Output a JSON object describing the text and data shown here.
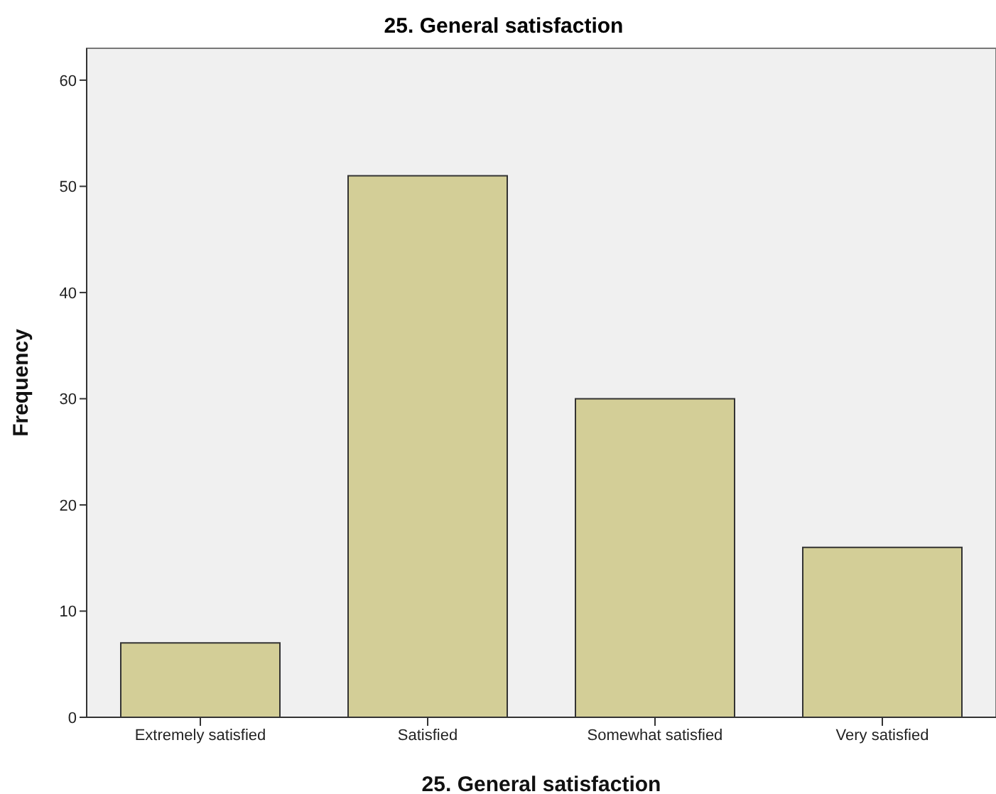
{
  "chart_data": {
    "type": "bar",
    "title": "25. General satisfaction",
    "xlabel": "25. General satisfaction",
    "ylabel": "Frequency",
    "categories": [
      "Extremely satisfied",
      "Satisfied",
      "Somewhat satisfied",
      "Very satisfied"
    ],
    "values": [
      7,
      51,
      30,
      16
    ],
    "color": "#d3ce97",
    "ylim": [
      0,
      63
    ],
    "yticks": [
      0,
      10,
      20,
      30,
      40,
      50,
      60
    ]
  }
}
